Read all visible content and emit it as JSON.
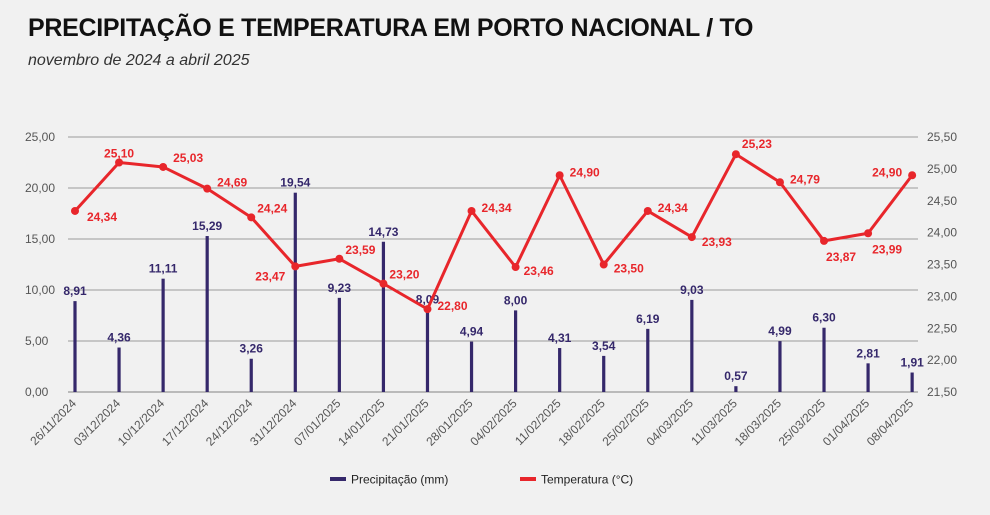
{
  "header": {
    "title": "PRECIPITAÇÃO E TEMPERATURA EM PORTO NACIONAL / TO",
    "subtitle": "novembro de 2024 a abril 2025"
  },
  "colors": {
    "precipitation": "#35286b",
    "temperature": "#e8262b",
    "grid": "#9a9a9a",
    "background": "#f1f1f1"
  },
  "chart_data": {
    "type": "bar+line",
    "categories": [
      "26/11/2024",
      "03/12/2024",
      "10/12/2024",
      "17/12/2024",
      "24/12/2024",
      "31/12/2024",
      "07/01/2025",
      "14/01/2025",
      "21/01/2025",
      "28/01/2025",
      "04/02/2025",
      "11/02/2025",
      "18/02/2025",
      "25/02/2025",
      "04/03/2025",
      "11/03/2025",
      "18/03/2025",
      "25/03/2025",
      "01/04/2025",
      "08/04/2025"
    ],
    "series": [
      {
        "name": "Precipitação (mm)",
        "type": "bar",
        "axis": "left",
        "values": [
          8.91,
          4.36,
          11.11,
          15.29,
          3.26,
          19.54,
          9.23,
          14.73,
          8.09,
          4.94,
          8.0,
          4.31,
          3.54,
          6.19,
          9.03,
          0.57,
          4.99,
          6.3,
          2.81,
          1.91
        ],
        "labels": [
          "8,91",
          "4,36",
          "11,11",
          "15,29",
          "3,26",
          "19,54",
          "9,23",
          "14,73",
          "8,09",
          "4,94",
          "8,00",
          "4,31",
          "3,54",
          "6,19",
          "9,03",
          "0,57",
          "4,99",
          "6,30",
          "2,81",
          "1,91"
        ]
      },
      {
        "name": "Temperatura (°C)",
        "type": "line",
        "axis": "right",
        "values": [
          24.34,
          25.1,
          25.03,
          24.69,
          24.24,
          23.47,
          23.59,
          23.2,
          22.8,
          24.34,
          23.46,
          24.9,
          23.5,
          24.34,
          23.93,
          25.23,
          24.79,
          23.87,
          23.99,
          24.9
        ],
        "labels": [
          "24,34",
          "25,10",
          "25,03",
          "24,69",
          "24,24",
          "23,47",
          "23,59",
          "23,20",
          "22,80",
          "24,34",
          "23,46",
          "24,90",
          "23,50",
          "24,34",
          "23,93",
          "25,23",
          "24,79",
          "23,87",
          "23,99",
          "24,90"
        ]
      }
    ],
    "y_left": {
      "lim": [
        0,
        25
      ],
      "ticks": [
        "0,00",
        "5,00",
        "10,00",
        "15,00",
        "20,00",
        "25,00"
      ]
    },
    "y_right": {
      "lim": [
        21.5,
        25.5
      ],
      "ticks": [
        "21,50",
        "22,00",
        "22,50",
        "23,00",
        "23,50",
        "24,00",
        "24,50",
        "25,00",
        "25,50"
      ]
    },
    "grid": true,
    "legend_position": "bottom-center"
  }
}
